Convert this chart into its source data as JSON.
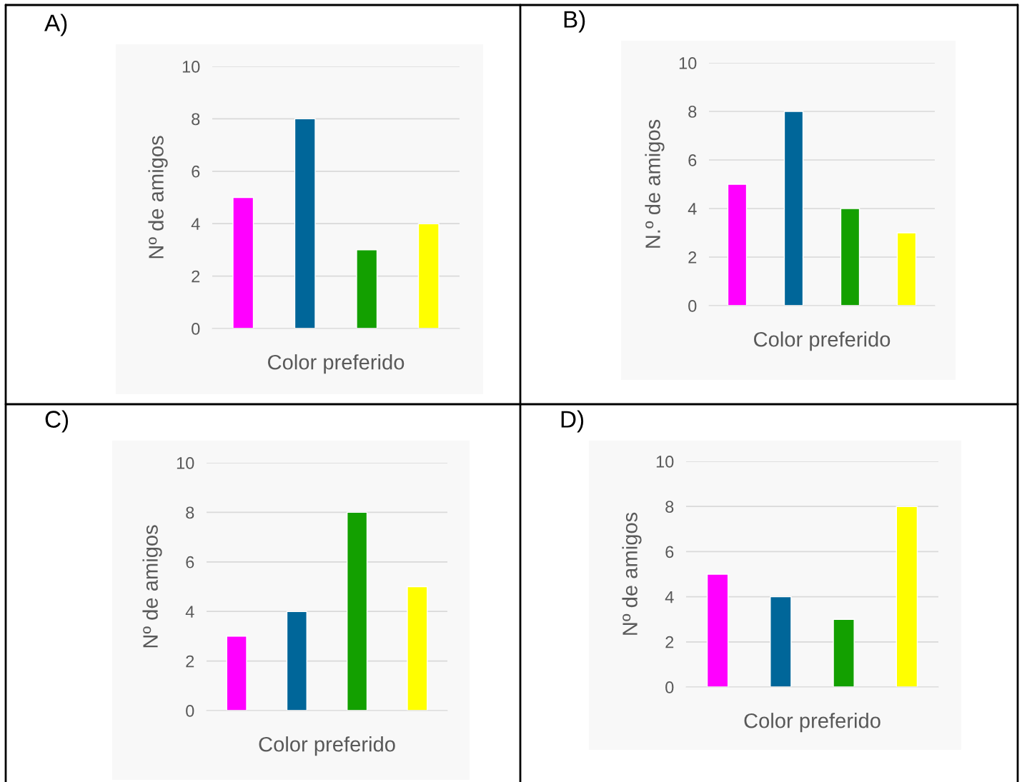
{
  "chart_data": [
    {
      "type": "bar",
      "title": "A)",
      "xlabel": "Color preferido",
      "ylabel": "Nº de amigos",
      "categories": [
        null,
        null,
        null,
        null
      ],
      "values": [
        5,
        8,
        3,
        4
      ],
      "colors": [
        "#ff00ff",
        "#006699",
        "#13a000",
        "#ffff00"
      ],
      "ylim": [
        0,
        10
      ],
      "yticks": [
        0,
        2,
        4,
        6,
        8,
        10
      ],
      "grid": "y"
    },
    {
      "type": "bar",
      "title": "B)",
      "xlabel": "Color preferido",
      "ylabel": "N.º de amigos",
      "categories": [
        null,
        null,
        null,
        null
      ],
      "values": [
        5,
        8,
        4,
        3
      ],
      "colors": [
        "#ff00ff",
        "#006699",
        "#13a000",
        "#ffff00"
      ],
      "ylim": [
        0,
        10
      ],
      "yticks": [
        0,
        2,
        4,
        6,
        8,
        10
      ],
      "grid": "y"
    },
    {
      "type": "bar",
      "title": "C)",
      "xlabel": "Color preferido",
      "ylabel": "Nº de amigos",
      "categories": [
        null,
        null,
        null,
        null
      ],
      "values": [
        3,
        4,
        8,
        5
      ],
      "colors": [
        "#ff00ff",
        "#006699",
        "#13a000",
        "#ffff00"
      ],
      "ylim": [
        0,
        10
      ],
      "yticks": [
        0,
        2,
        4,
        6,
        8,
        10
      ],
      "grid": "y"
    },
    {
      "type": "bar",
      "title": "D)",
      "xlabel": "Color preferido",
      "ylabel": "Nº de amigos",
      "categories": [
        null,
        null,
        null,
        null
      ],
      "values": [
        5,
        4,
        3,
        8
      ],
      "colors": [
        "#ff00ff",
        "#006699",
        "#13a000",
        "#ffff00"
      ],
      "ylim": [
        0,
        10
      ],
      "yticks": [
        0,
        2,
        4,
        6,
        8,
        10
      ],
      "grid": "y"
    }
  ]
}
